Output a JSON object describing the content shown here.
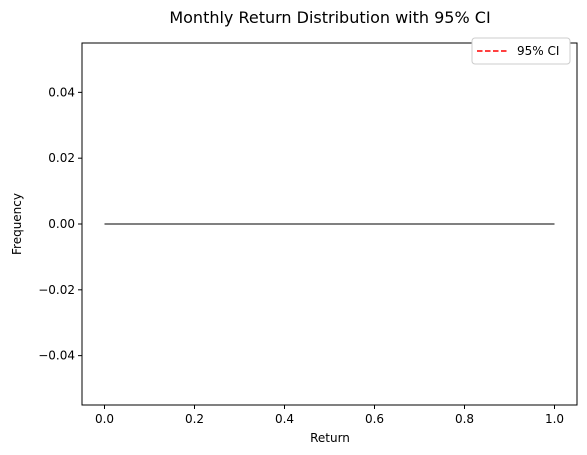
{
  "chart_data": {
    "type": "histogram",
    "title": "Monthly Return Distribution with 95% CI",
    "xlabel": "Return",
    "ylabel": "Frequency",
    "xlim": [
      -0.05,
      1.05
    ],
    "ylim": [
      -0.055,
      0.055
    ],
    "x_ticks": [
      0.0,
      0.2,
      0.4,
      0.6,
      0.8,
      1.0
    ],
    "x_tick_labels": [
      "0.0",
      "0.2",
      "0.4",
      "0.6",
      "0.8",
      "1.0"
    ],
    "y_ticks": [
      -0.04,
      -0.02,
      0.0,
      0.02,
      0.04
    ],
    "y_tick_labels": [
      "−0.04",
      "−0.02",
      "0.00",
      "0.02",
      "0.04"
    ],
    "series": [
      {
        "kind": "histogram_baseline",
        "x": [
          0.0,
          1.0
        ],
        "y": [
          0.0,
          0.0
        ],
        "color": "#000000"
      }
    ],
    "legend": {
      "position": "top-right",
      "entries": [
        {
          "label": "95% CI",
          "color": "#ff0000",
          "style": "dashed"
        }
      ]
    },
    "grid": false
  }
}
